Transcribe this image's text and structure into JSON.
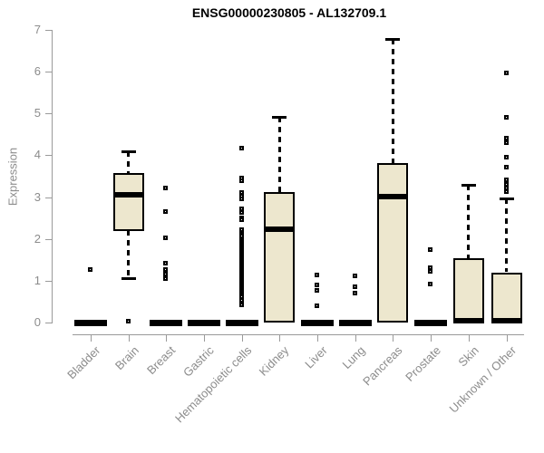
{
  "title": "ENSG00000230805 - AL132709.1",
  "ylabel": "Expression",
  "chart_data": {
    "type": "boxplot",
    "title": "ENSG00000230805 - AL132709.1",
    "ylabel": "Expression",
    "xlabel": "",
    "ylim": [
      0,
      7
    ],
    "yticks": [
      0,
      1,
      2,
      3,
      4,
      5,
      6,
      7
    ],
    "grid": false,
    "categories": [
      "Bladder",
      "Brain",
      "Breast",
      "Gastric",
      "Hematopoietic cells",
      "Kidney",
      "Liver",
      "Lung",
      "Pancreas",
      "Prostate",
      "Skin",
      "Unknown / Other"
    ],
    "series": [
      {
        "category": "Bladder",
        "flat": true,
        "q1": 0,
        "median": 0,
        "q3": 0,
        "whisker_low": 0,
        "whisker_high": 0,
        "outliers": [
          1.26
        ]
      },
      {
        "category": "Brain",
        "flat": false,
        "q1": 2.2,
        "median": 3.06,
        "q3": 3.58,
        "whisker_low": 1.06,
        "whisker_high": 4.1,
        "outliers": [
          0.02
        ]
      },
      {
        "category": "Breast",
        "flat": true,
        "q1": 0,
        "median": 0,
        "q3": 0,
        "whisker_low": 0,
        "whisker_high": 0,
        "outliers": [
          3.2,
          2.64,
          2.02,
          1.41,
          1.26,
          1.15,
          1.05
        ]
      },
      {
        "category": "Gastric",
        "flat": true,
        "q1": 0,
        "median": 0,
        "q3": 0,
        "whisker_low": 0,
        "whisker_high": 0,
        "outliers": []
      },
      {
        "category": "Hematopoietic cells",
        "flat": true,
        "q1": 0,
        "median": 0,
        "q3": 0,
        "whisker_low": 0,
        "whisker_high": 0,
        "outliers": [
          4.16,
          3.45,
          3.38,
          3.1,
          3.02,
          2.95,
          2.7,
          2.62,
          2.5,
          2.44,
          2.2,
          2.15,
          2.1,
          2.05,
          2.0,
          1.96,
          1.92,
          1.88,
          1.84,
          1.8,
          1.76,
          1.72,
          1.68,
          1.64,
          1.6,
          1.56,
          1.52,
          1.48,
          1.44,
          1.4,
          1.36,
          1.32,
          1.28,
          1.24,
          1.2,
          1.16,
          1.12,
          1.08,
          1.04,
          1.0,
          0.96,
          0.92,
          0.88,
          0.84,
          0.8,
          0.76,
          0.72,
          0.68,
          0.64,
          0.6,
          0.52,
          0.42
        ]
      },
      {
        "category": "Kidney",
        "flat": false,
        "q1": 0,
        "median": 2.23,
        "q3": 3.12,
        "whisker_low": 0,
        "whisker_high": 4.92,
        "outliers": []
      },
      {
        "category": "Liver",
        "flat": true,
        "q1": 0,
        "median": 0,
        "q3": 0,
        "whisker_low": 0,
        "whisker_high": 0,
        "outliers": [
          1.12,
          0.88,
          0.76,
          0.4
        ]
      },
      {
        "category": "Lung",
        "flat": true,
        "q1": 0,
        "median": 0,
        "q3": 0,
        "whisker_low": 0,
        "whisker_high": 0,
        "outliers": [
          1.1,
          0.85,
          0.7
        ]
      },
      {
        "category": "Pancreas",
        "flat": false,
        "q1": 0,
        "median": 3.01,
        "q3": 3.81,
        "whisker_low": 0,
        "whisker_high": 6.78,
        "outliers": []
      },
      {
        "category": "Prostate",
        "flat": true,
        "q1": 0,
        "median": 0,
        "q3": 0,
        "whisker_low": 0,
        "whisker_high": 0,
        "outliers": [
          1.73,
          1.3,
          1.22,
          0.9
        ]
      },
      {
        "category": "Skin",
        "flat": false,
        "q1": 0,
        "median": 0.04,
        "q3": 1.54,
        "whisker_low": 0,
        "whisker_high": 3.29,
        "outliers": []
      },
      {
        "category": "Unknown / Other",
        "flat": false,
        "q1": 0,
        "median": 0.04,
        "q3": 1.2,
        "whisker_low": 0,
        "whisker_high": 2.96,
        "outliers": [
          5.95,
          4.9,
          4.4,
          4.3,
          3.95,
          3.7,
          3.4,
          3.3,
          3.2,
          3.12
        ]
      }
    ],
    "colors": {
      "box_fill": "#EDE7CE",
      "box_border": "#000000",
      "median": "#000000",
      "outlier": "#000000",
      "axis": "#9A9A9A",
      "tick_label": "#8C8C8C",
      "title": "#000000",
      "background": "#FFFFFF"
    }
  }
}
